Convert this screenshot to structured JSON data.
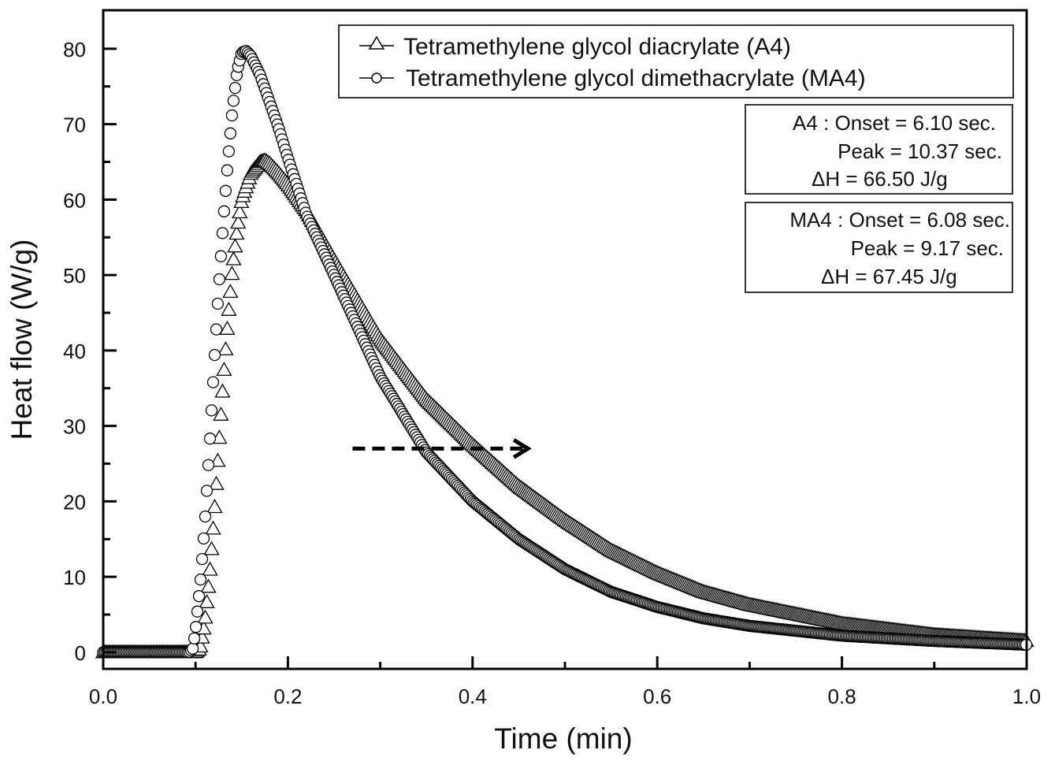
{
  "chart_data": {
    "type": "scatter",
    "title": "",
    "xlabel": "Time (min)",
    "ylabel": "Heat flow (W/g)",
    "xlim": [
      0.0,
      1.0
    ],
    "ylim": [
      -2.2,
      85.1
    ],
    "xticks": [
      0.0,
      0.2,
      0.4,
      0.6,
      0.8,
      1.0
    ],
    "xtick_labels": [
      "0.0",
      "0.2",
      "0.4",
      "0.6",
      "0.8",
      "1.0"
    ],
    "yticks": [
      0,
      10,
      20,
      30,
      40,
      50,
      60,
      70,
      80
    ],
    "ytick_labels": [
      "0",
      "10",
      "20",
      "30",
      "40",
      "50",
      "60",
      "70",
      "80"
    ],
    "grid": false,
    "legend_position": "top-right",
    "series": [
      {
        "name": "Tetramethylene glycol diacrylate (A4)",
        "marker": "triangle",
        "x": [
          0.0,
          0.05,
          0.1,
          0.105,
          0.11,
          0.115,
          0.12,
          0.125,
          0.13,
          0.135,
          0.14,
          0.145,
          0.15,
          0.16,
          0.17,
          0.175,
          0.18,
          0.19,
          0.2,
          0.22,
          0.25,
          0.3,
          0.35,
          0.4,
          0.45,
          0.5,
          0.55,
          0.6,
          0.65,
          0.7,
          0.8,
          0.9,
          1.0
        ],
        "y": [
          0,
          0,
          0,
          0.5,
          4,
          10,
          18,
          27,
          36,
          44,
          51,
          56,
          60,
          63.5,
          65,
          65.2,
          64.8,
          63.5,
          62,
          58.5,
          52,
          41.5,
          33.5,
          27.5,
          22,
          17.5,
          13.5,
          10.5,
          8,
          6.3,
          3.8,
          2.3,
          1.5
        ]
      },
      {
        "name": "Tetramethylene glycol dimethacrylate (MA4)",
        "marker": "circle",
        "x": [
          0.0,
          0.05,
          0.093,
          0.097,
          0.1,
          0.105,
          0.11,
          0.115,
          0.12,
          0.125,
          0.13,
          0.135,
          0.14,
          0.145,
          0.15,
          0.155,
          0.16,
          0.17,
          0.18,
          0.19,
          0.2,
          0.22,
          0.25,
          0.3,
          0.35,
          0.4,
          0.45,
          0.5,
          0.55,
          0.6,
          0.65,
          0.7,
          0.8,
          0.9,
          1.0
        ],
        "y": [
          0,
          0,
          0,
          0.5,
          3,
          9,
          17,
          27,
          38,
          48,
          57,
          65,
          72,
          77,
          79.5,
          79.7,
          79,
          76.5,
          73,
          69.5,
          65.5,
          58,
          50,
          36.5,
          26.5,
          20,
          15,
          11,
          8,
          6,
          4.5,
          3.5,
          2.2,
          1.5,
          1.0
        ]
      }
    ],
    "annotations": {
      "arrow": {
        "from": [
          0.27,
          27
        ],
        "to": [
          0.46,
          27
        ],
        "style": "dashed"
      },
      "a4_box": [
        "A4 : Onset = 6.10 sec.",
        "Peak = 10.37 sec.",
        "ΔH = 66.50 J/g"
      ],
      "ma4_box": [
        "MA4 : Onset = 6.08 sec.",
        "Peak = 9.17 sec.",
        "ΔH = 67.45 J/g"
      ]
    }
  }
}
